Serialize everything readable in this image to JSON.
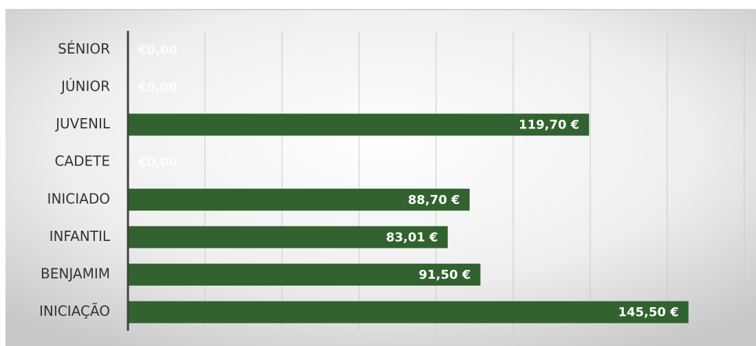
{
  "chart_data": {
    "type": "barh",
    "categories": [
      "SÉNIOR",
      "JÚNIOR",
      "JUVENIL",
      "CADETE",
      "INICIADO",
      "INFANTIL",
      "BENJAMIM",
      "INICIAÇÃO"
    ],
    "values": [
      0,
      0,
      119.7,
      0,
      88.7,
      83.01,
      91.5,
      145.5
    ],
    "value_labels": [
      "€0,00",
      "€0,00",
      "119,70 €",
      "€0,00",
      "88,70 €",
      "83,01 €",
      "91,50 €",
      "145,50 €"
    ],
    "color": "#31622f",
    "xlim": [
      0,
      160
    ],
    "xticks": [
      0,
      20,
      40,
      60,
      80,
      100,
      120,
      140,
      160
    ],
    "grid": true
  }
}
